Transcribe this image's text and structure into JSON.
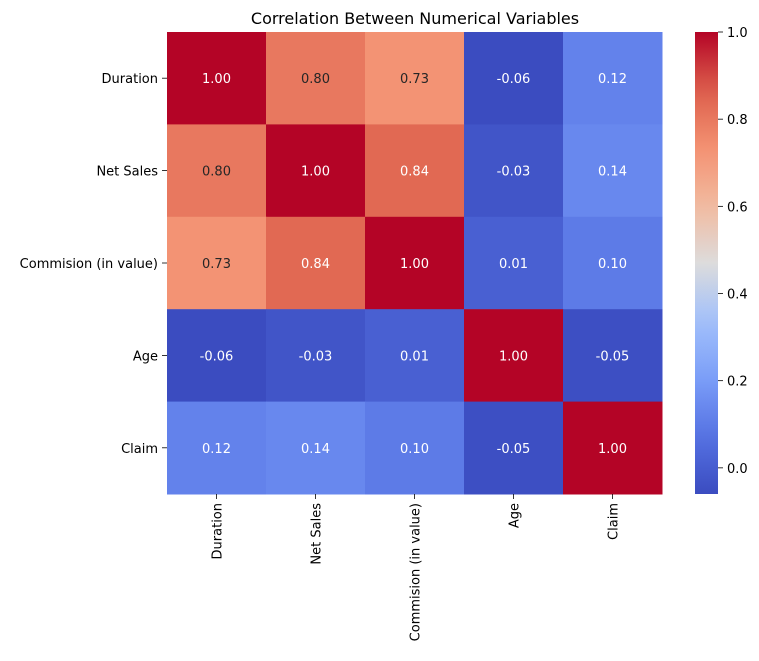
{
  "chart_data": {
    "type": "heatmap",
    "title": "Correlation Between Numerical Variables",
    "xlabel": "",
    "ylabel": "",
    "rows": [
      "Duration",
      "Net Sales",
      "Commision (in value)",
      "Age",
      "Claim"
    ],
    "columns": [
      "Duration",
      "Net Sales",
      "Commision (in value)",
      "Age",
      "Claim"
    ],
    "values": [
      [
        1.0,
        0.8,
        0.73,
        -0.06,
        0.12
      ],
      [
        0.8,
        1.0,
        0.84,
        -0.03,
        0.14
      ],
      [
        0.73,
        0.84,
        1.0,
        0.01,
        0.1
      ],
      [
        -0.06,
        -0.03,
        0.01,
        1.0,
        -0.05
      ],
      [
        0.12,
        0.14,
        0.1,
        -0.05,
        1.0
      ]
    ],
    "value_format": "2 decimals",
    "colormap": "coolwarm",
    "color_range": [
      -0.06,
      1.0
    ],
    "colorbar_ticks": [
      "0.0",
      "0.2",
      "0.4",
      "0.6",
      "0.8",
      "1.0"
    ],
    "colorbar_tick_values": [
      0.0,
      0.2,
      0.4,
      0.6,
      0.8,
      1.0
    ],
    "colorbar_placement": "right",
    "grid": false,
    "legend": "colorbar"
  }
}
